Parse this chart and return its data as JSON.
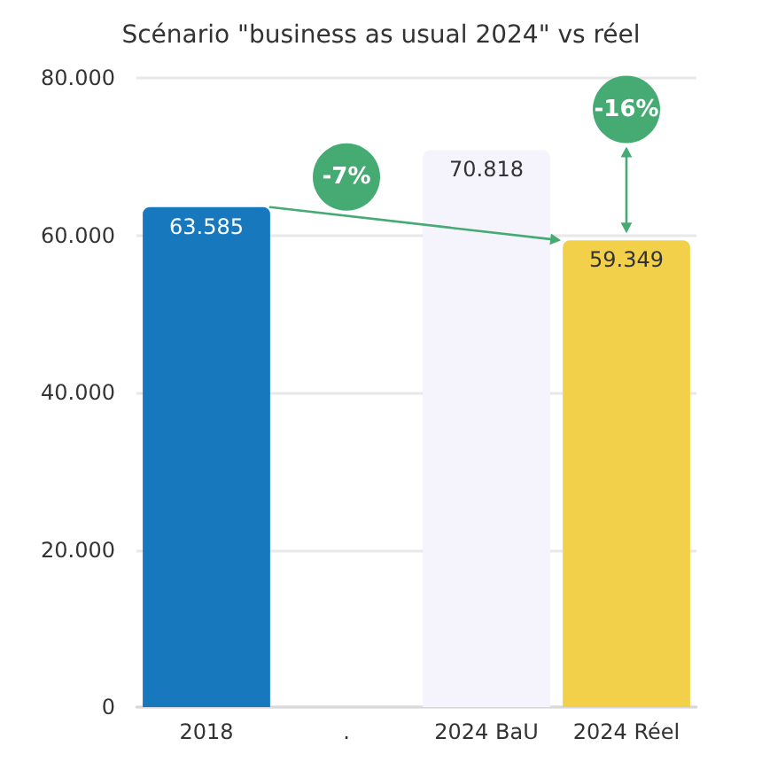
{
  "chart_data": {
    "type": "bar",
    "title": "Scénario \"business as usual 2024\" vs réel",
    "categories": [
      "2018",
      ".",
      "2024 BaU",
      "2024 Réel"
    ],
    "values": [
      63585,
      null,
      70818,
      59349
    ],
    "colors": [
      "#1778be",
      null,
      "#f5f4fd",
      "#f3d04a"
    ],
    "value_labels": [
      "63.585",
      null,
      "70.818",
      "59.349"
    ],
    "ylim": [
      0,
      80000
    ],
    "yticks": [
      0,
      {
        "value": 20000,
        "label": "20.000"
      },
      {
        "value": 40000,
        "label": "40.000"
      },
      {
        "value": 60000,
        "label": "60.000"
      },
      {
        "value": 80000,
        "label": "80.000"
      }
    ],
    "grid": "y",
    "annotations": [
      {
        "text": "-7%",
        "x": ".",
        "y": 67400
      },
      {
        "text": "-16%",
        "x": "2024 Réel",
        "y": 76000
      }
    ]
  }
}
